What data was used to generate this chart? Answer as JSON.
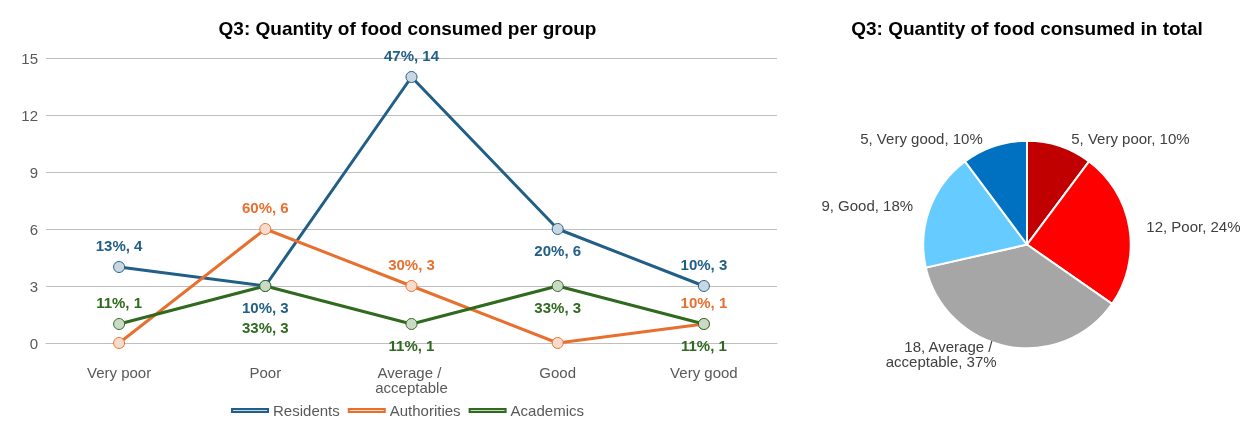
{
  "chart_data": [
    {
      "type": "line",
      "title": "Q3: Quantity of food consumed per group",
      "categories": [
        "Very poor",
        "Poor",
        "Average / acceptable",
        "Good",
        "Very good"
      ],
      "series": [
        {
          "name": "Residents",
          "color": "#215f86",
          "values": [
            4,
            3,
            14,
            6,
            3
          ],
          "value_labels": [
            "13%, 4",
            "10%, 3",
            "47%, 14",
            "20%, 6",
            "10%, 3"
          ]
        },
        {
          "name": "Authorities",
          "color": "#e8702f",
          "values": [
            0,
            6,
            3,
            0,
            1
          ],
          "value_labels": [
            null,
            "60%, 6",
            "30%, 3",
            null,
            "10%, 1"
          ]
        },
        {
          "name": "Academics",
          "color": "#2f6a1e",
          "values": [
            1,
            3,
            1,
            3,
            1
          ],
          "value_labels": [
            "11%, 1",
            "33%, 3",
            "11%, 1",
            "33%, 3",
            "11%, 1"
          ]
        }
      ],
      "ylim": [
        0,
        15
      ],
      "yticks": [
        0,
        3,
        6,
        9,
        12,
        15
      ],
      "grid": "y",
      "legend": "bottom",
      "marker": "circle"
    },
    {
      "type": "pie",
      "title": "Q3: Quantity of food consumed in total",
      "categories": [
        "5, Very poor, 10%",
        "12, Poor, 24%",
        "18, Average / acceptable, 37%",
        "9, Good, 18%",
        "5, Very good, 10%"
      ],
      "values": [
        5,
        12,
        18,
        9,
        5
      ],
      "colors": [
        "#c00000",
        "#ff0000",
        "#a6a6a6",
        "#66ccff",
        "#0070c0"
      ]
    }
  ]
}
